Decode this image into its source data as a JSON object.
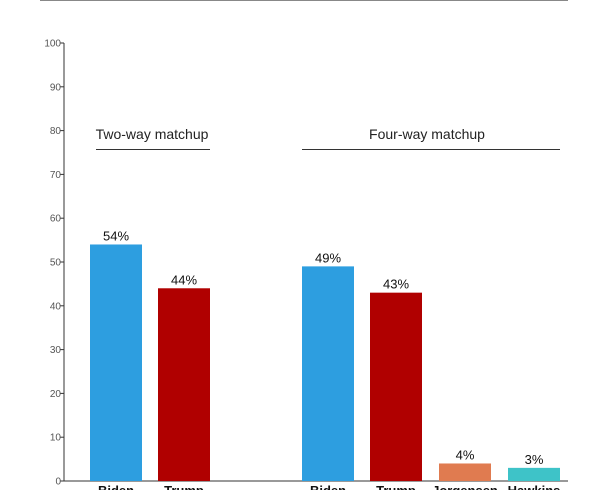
{
  "chart_data": {
    "type": "bar",
    "ylim": [
      0,
      100
    ],
    "yticks": [
      0,
      10,
      20,
      30,
      40,
      50,
      60,
      70,
      80,
      90,
      100
    ],
    "grid": false,
    "groups": [
      {
        "title": "Two-way matchup",
        "bars": [
          {
            "category": "Biden",
            "value": 54,
            "label": "54%",
            "color": "#2d9ee0"
          },
          {
            "category": "Trump",
            "value": 44,
            "label": "44%",
            "color": "#b00000"
          }
        ]
      },
      {
        "title": "Four-way matchup",
        "bars": [
          {
            "category": "Biden",
            "value": 49,
            "label": "49%",
            "color": "#2d9ee0"
          },
          {
            "category": "Trump",
            "value": 43,
            "label": "43%",
            "color": "#b00000"
          },
          {
            "category": "Jorgensen",
            "value": 4,
            "label": "4%",
            "color": "#e07b50"
          },
          {
            "category": "Hawkins",
            "value": 3,
            "label": "3%",
            "color": "#3ec3c8"
          }
        ]
      }
    ]
  }
}
